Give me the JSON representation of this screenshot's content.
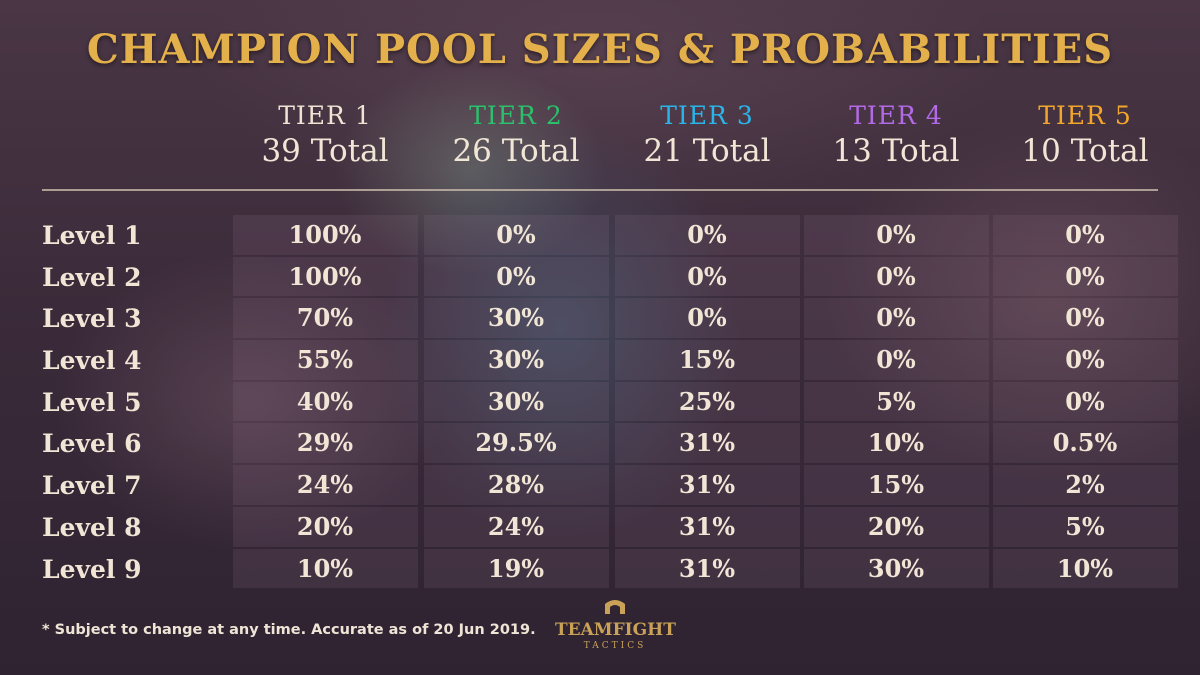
{
  "title": "CHAMPION POOL SIZES & PROBABILITIES",
  "tiers": [
    {
      "name": "TIER 1",
      "total": "39 Total",
      "color": "#efe4d4"
    },
    {
      "name": "TIER 2",
      "total": "26 Total",
      "color": "#2bc06b"
    },
    {
      "name": "TIER 3",
      "total": "21 Total",
      "color": "#2ab5ea"
    },
    {
      "name": "TIER 4",
      "total": "13 Total",
      "color": "#b26ae6"
    },
    {
      "name": "TIER 5",
      "total": "10 Total",
      "color": "#f2a72a"
    }
  ],
  "rows": [
    {
      "label": "Level 1",
      "values": [
        "100%",
        "0%",
        "0%",
        "0%",
        "0%"
      ]
    },
    {
      "label": "Level 2",
      "values": [
        "100%",
        "0%",
        "0%",
        "0%",
        "0%"
      ]
    },
    {
      "label": "Level 3",
      "values": [
        "70%",
        "30%",
        "0%",
        "0%",
        "0%"
      ]
    },
    {
      "label": "Level 4",
      "values": [
        "55%",
        "30%",
        "15%",
        "0%",
        "0%"
      ]
    },
    {
      "label": "Level 5",
      "values": [
        "40%",
        "30%",
        "25%",
        "5%",
        "0%"
      ]
    },
    {
      "label": "Level 6",
      "values": [
        "29%",
        "29.5%",
        "31%",
        "10%",
        "0.5%"
      ]
    },
    {
      "label": "Level 7",
      "values": [
        "24%",
        "28%",
        "31%",
        "15%",
        "2%"
      ]
    },
    {
      "label": "Level 8",
      "values": [
        "20%",
        "24%",
        "31%",
        "20%",
        "5%"
      ]
    },
    {
      "label": "Level 9",
      "values": [
        "10%",
        "19%",
        "31%",
        "30%",
        "10%"
      ]
    }
  ],
  "footnote": "* Subject to change at any time. Accurate as of 20 Jun 2019.",
  "logo": {
    "icon": "crest-icon",
    "main": "TEAMFIGHT",
    "sub": "TACTICS"
  }
}
